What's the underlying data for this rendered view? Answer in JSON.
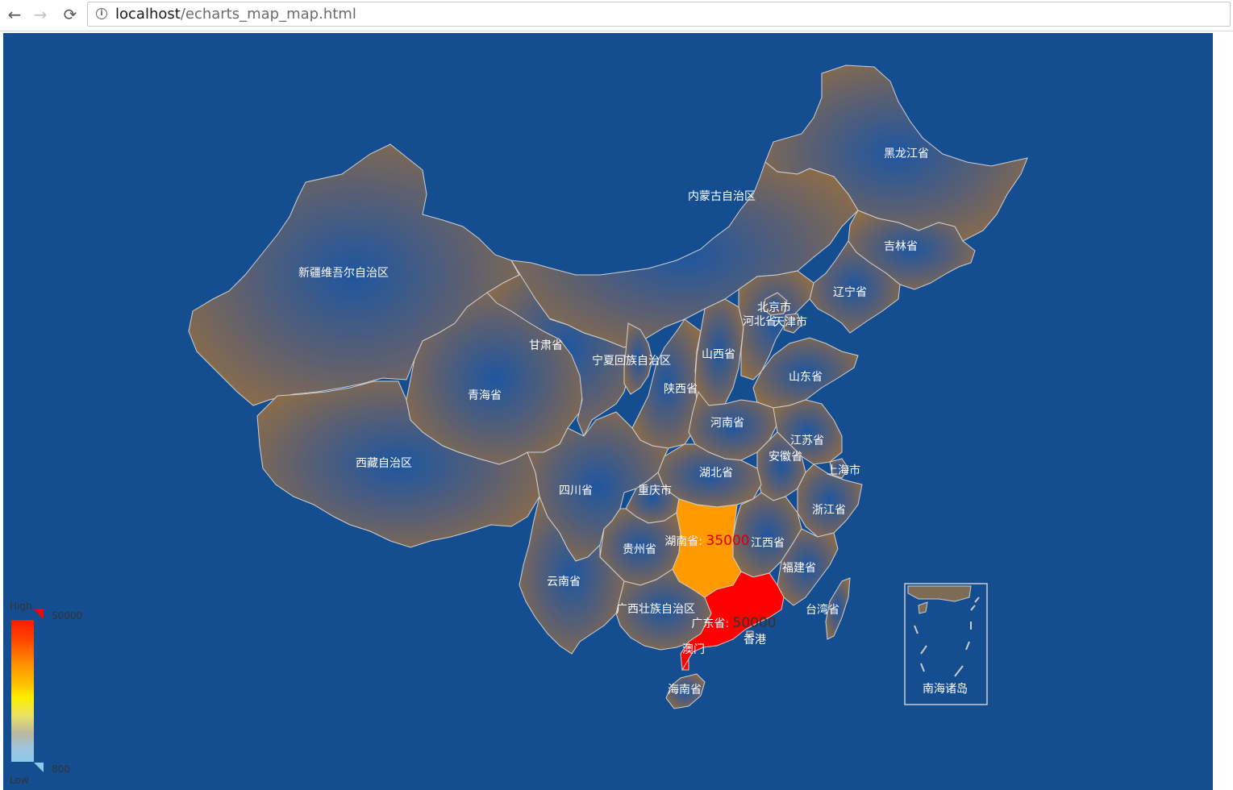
{
  "browser": {
    "url_host": "localhost",
    "url_path": "/echarts_map_map.html",
    "back_icon": "←",
    "forward_icon": "→",
    "reload_icon": "⟳",
    "info_icon": "i"
  },
  "map": {
    "background": "#154e90",
    "area_color": "#8a6c4b",
    "border_color": "#d0d0d0",
    "provinces": [
      {
        "name": "黑龙江省"
      },
      {
        "name": "内蒙古自治区"
      },
      {
        "name": "吉林省"
      },
      {
        "name": "新疆维吾尔自治区"
      },
      {
        "name": "辽宁省"
      },
      {
        "name": "北京市"
      },
      {
        "name": "河北省"
      },
      {
        "name": "天津市"
      },
      {
        "name": "甘肃省"
      },
      {
        "name": "宁夏回族自治区"
      },
      {
        "name": "山西省"
      },
      {
        "name": "山东省"
      },
      {
        "name": "青海省"
      },
      {
        "name": "陕西省"
      },
      {
        "name": "河南省"
      },
      {
        "name": "江苏省"
      },
      {
        "name": "安徽省"
      },
      {
        "name": "西藏自治区"
      },
      {
        "name": "湖北省"
      },
      {
        "name": "上海市"
      },
      {
        "name": "四川省"
      },
      {
        "name": "重庆市"
      },
      {
        "name": "浙江省"
      },
      {
        "name": "江西省"
      },
      {
        "name": "贵州省"
      },
      {
        "name": "福建省"
      },
      {
        "name": "云南省"
      },
      {
        "name": "广西壮族自治区"
      },
      {
        "name": "台湾省"
      },
      {
        "name": "香港"
      },
      {
        "name": "澳门"
      },
      {
        "name": "海南省"
      },
      {
        "name": "南海诸岛"
      }
    ],
    "highlighted": [
      {
        "name": "湖南省",
        "value": "35000",
        "color": "#ff9a00"
      },
      {
        "name": "广东省",
        "value": "50000",
        "color": "#ff0000"
      }
    ]
  },
  "legend": {
    "high_label": "High",
    "low_label": "Low",
    "max_value": "50000",
    "min_value": "800",
    "colors": [
      "#ff2a00",
      "#ff5500",
      "#ff7a00",
      "#ff9c00",
      "#ffc000",
      "#ffe800",
      "#e8e060",
      "#c8c08a",
      "#a8c0d0",
      "#8ec8e8"
    ]
  }
}
